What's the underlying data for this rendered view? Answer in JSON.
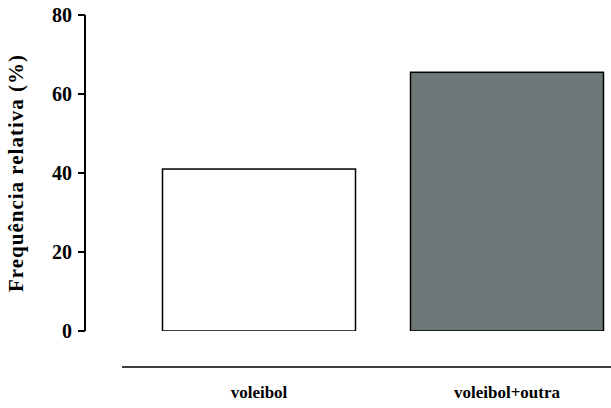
{
  "chart_data": {
    "type": "bar",
    "y_label": "Frequência relativa (%)",
    "categories": [
      "voleibol",
      "voleibol+outra"
    ],
    "values": [
      41,
      65.5
    ],
    "colors": [
      "#ffffff",
      "#6e7777"
    ],
    "ylim": [
      0,
      80
    ],
    "yticks": [
      0,
      20,
      40,
      60,
      80
    ],
    "grid": false
  }
}
